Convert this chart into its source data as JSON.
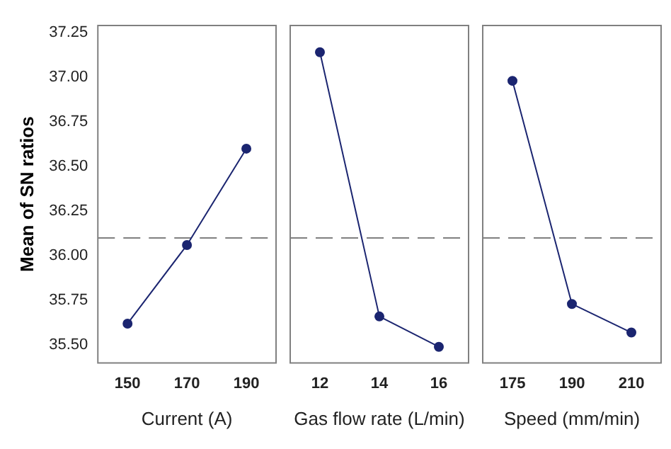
{
  "chart_data": [
    {
      "type": "line",
      "categories": [
        "150",
        "170",
        "190"
      ],
      "xlabel": "Current (A)",
      "ylabel": "Mean of SN ratios",
      "marker": "circle",
      "ylim": [
        35.4,
        37.29
      ],
      "yticks": [
        {
          "value": 35.5,
          "label": "35.50"
        },
        {
          "value": 35.75,
          "label": "35.75"
        },
        {
          "value": 36,
          "label": "36.00"
        },
        {
          "value": 36.25,
          "label": "36.25"
        },
        {
          "value": 36.5,
          "label": "36.50"
        },
        {
          "value": 36.75,
          "label": "36.75"
        },
        {
          "value": 37,
          "label": "37.00"
        },
        {
          "value": 37.25,
          "label": "37.25"
        }
      ],
      "ref_lines": [
        {
          "axis": "y",
          "value": 36.1,
          "line_style": "dashed",
          "color": "#808080"
        }
      ],
      "series": [
        {
          "color": "#1b2570",
          "values": [
            35.62,
            36.06,
            36.6
          ]
        }
      ]
    },
    {
      "type": "line",
      "categories": [
        "12",
        "14",
        "16"
      ],
      "xlabel": "Gas flow rate (L/min)",
      "marker": "circle",
      "tick_labels": "x",
      "ylim": [
        35.4,
        37.29
      ],
      "ref_lines": [
        {
          "axis": "y",
          "value": 36.1,
          "line_style": "dashed",
          "color": "#808080"
        }
      ],
      "series": [
        {
          "color": "#1b2570",
          "values": [
            37.14,
            35.66,
            35.49
          ]
        }
      ]
    },
    {
      "type": "line",
      "categories": [
        "175",
        "190",
        "210"
      ],
      "xlabel": "Speed (mm/min)",
      "marker": "circle",
      "tick_labels": "x",
      "ylim": [
        35.4,
        37.29
      ],
      "ref_lines": [
        {
          "axis": "y",
          "value": 36.1,
          "line_style": "dashed",
          "color": "#808080"
        }
      ],
      "series": [
        {
          "color": "#1b2570",
          "values": [
            36.98,
            35.73,
            35.57
          ]
        }
      ]
    }
  ]
}
